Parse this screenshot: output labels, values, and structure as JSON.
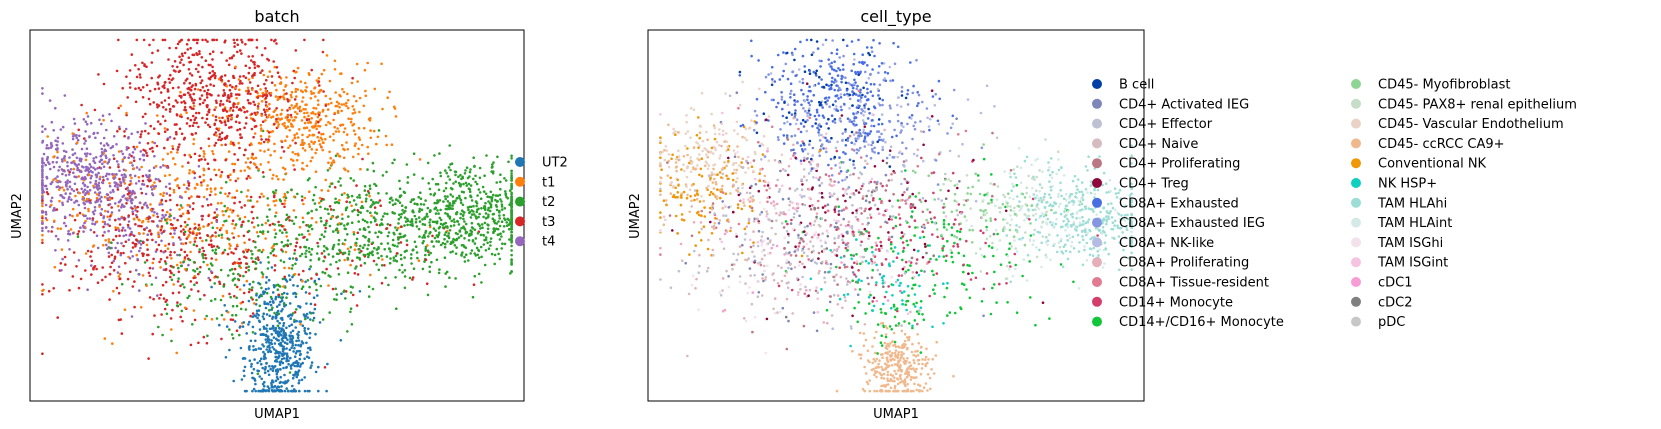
{
  "chart_data": [
    {
      "type": "scatter",
      "title": "batch",
      "xlabel": "UMAP1",
      "ylabel": "UMAP2",
      "grid": false,
      "legend_placement": "right",
      "series": [
        {
          "name": "UT2",
          "color": "#1f77b4",
          "regions": [
            {
              "cx": 2.55,
              "cy": -2.6,
              "sx": 0.35,
              "sy": 0.55,
              "n": 420
            },
            {
              "cx": 2.6,
              "cy": -1.6,
              "sx": 0.5,
              "sy": 0.4,
              "n": 120
            }
          ]
        },
        {
          "name": "t1",
          "color": "#ff7f0e",
          "regions": [
            {
              "cx": 3.0,
              "cy": 2.2,
              "sx": 0.8,
              "sy": 0.55,
              "n": 420
            },
            {
              "cx": 1.2,
              "cy": 0.3,
              "sx": 1.6,
              "sy": 0.9,
              "n": 380
            },
            {
              "cx": -1.4,
              "cy": 0.6,
              "sx": 0.5,
              "sy": 0.5,
              "n": 60
            }
          ]
        },
        {
          "name": "t2",
          "color": "#2ca02c",
          "regions": [
            {
              "cx": 6.4,
              "cy": 0.3,
              "sx": 0.8,
              "sy": 0.55,
              "n": 600
            },
            {
              "cx": 4.2,
              "cy": 0.0,
              "sx": 1.0,
              "sy": 0.55,
              "n": 380
            },
            {
              "cx": 2.0,
              "cy": -0.8,
              "sx": 1.2,
              "sy": 0.7,
              "n": 260
            }
          ]
        },
        {
          "name": "t3",
          "color": "#d62728",
          "regions": [
            {
              "cx": 1.2,
              "cy": 2.6,
              "sx": 0.95,
              "sy": 0.7,
              "n": 600
            },
            {
              "cx": 0.4,
              "cy": -0.4,
              "sx": 1.2,
              "sy": 0.8,
              "n": 420
            },
            {
              "cx": 4.2,
              "cy": -0.3,
              "sx": 1.0,
              "sy": 0.6,
              "n": 70
            }
          ]
        },
        {
          "name": "t4",
          "color": "#9467bd",
          "regions": [
            {
              "cx": -1.4,
              "cy": 1.0,
              "sx": 0.7,
              "sy": 0.6,
              "n": 500
            },
            {
              "cx": -0.2,
              "cy": 0.2,
              "sx": 0.7,
              "sy": 0.6,
              "n": 150
            }
          ]
        }
      ],
      "xlim": [
        -2.5,
        7.5
      ],
      "ylim": [
        -3.5,
        4.0
      ]
    },
    {
      "type": "scatter",
      "title": "cell_type",
      "xlabel": "UMAP1",
      "ylabel": "UMAP2",
      "grid": false,
      "legend_placement": "right",
      "legend_columns": 2,
      "series": [
        {
          "name": "B cell",
          "color": "#023fa5",
          "regions": [
            {
              "cx": 1.3,
              "cy": 2.6,
              "sx": 0.7,
              "sy": 0.6,
              "n": 70
            }
          ]
        },
        {
          "name": "CD4+ Activated IEG",
          "color": "#7d87b9",
          "regions": [
            {
              "cx": 1.0,
              "cy": 0.3,
              "sx": 1.2,
              "sy": 1.0,
              "n": 90
            }
          ]
        },
        {
          "name": "CD4+ Effector",
          "color": "#bec1d4",
          "regions": [
            {
              "cx": 0.5,
              "cy": -0.3,
              "sx": 1.1,
              "sy": 0.8,
              "n": 110
            }
          ]
        },
        {
          "name": "CD4+ Naive",
          "color": "#d6bcc0",
          "regions": [
            {
              "cx": 0.2,
              "cy": -0.6,
              "sx": 1.0,
              "sy": 0.7,
              "n": 110
            }
          ]
        },
        {
          "name": "CD4+ Proliferating",
          "color": "#bb7784",
          "regions": [
            {
              "cx": 1.2,
              "cy": 0.0,
              "sx": 1.3,
              "sy": 0.9,
              "n": 80
            }
          ]
        },
        {
          "name": "CD4+ Treg",
          "color": "#8e063b",
          "regions": [
            {
              "cx": 1.6,
              "cy": 0.3,
              "sx": 1.4,
              "sy": 1.0,
              "n": 90
            }
          ]
        },
        {
          "name": "CD8A+ Exhausted",
          "color": "#4a6fe3",
          "regions": [
            {
              "cx": 1.4,
              "cy": 2.6,
              "sx": 0.8,
              "sy": 0.6,
              "n": 280
            }
          ]
        },
        {
          "name": "CD8A+ Exhausted IEG",
          "color": "#8595e1",
          "regions": [
            {
              "cx": 1.6,
              "cy": 2.2,
              "sx": 0.9,
              "sy": 0.7,
              "n": 170
            }
          ]
        },
        {
          "name": "CD8A+ NK-like",
          "color": "#b5bbe3",
          "regions": [
            {
              "cx": 1.8,
              "cy": 1.8,
              "sx": 1.0,
              "sy": 0.8,
              "n": 120
            }
          ]
        },
        {
          "name": "CD8A+ Proliferating",
          "color": "#e6afb9",
          "regions": [
            {
              "cx": 0.6,
              "cy": 0.0,
              "sx": 1.2,
              "sy": 0.9,
              "n": 90
            }
          ]
        },
        {
          "name": "CD8A+ Tissue-resident",
          "color": "#e07b91",
          "regions": [
            {
              "cx": 1.0,
              "cy": 0.5,
              "sx": 1.2,
              "sy": 0.9,
              "n": 80
            }
          ]
        },
        {
          "name": "CD14+ Monocyte",
          "color": "#d33f6a",
          "regions": [
            {
              "cx": 2.8,
              "cy": -0.2,
              "sx": 1.2,
              "sy": 0.7,
              "n": 110
            }
          ]
        },
        {
          "name": "CD14+/CD16+ Monocyte",
          "color": "#11c638",
          "regions": [
            {
              "cx": 3.2,
              "cy": -0.6,
              "sx": 1.1,
              "sy": 0.7,
              "n": 160
            },
            {
              "cx": 2.6,
              "cy": -1.8,
              "sx": 0.4,
              "sy": 0.4,
              "n": 30
            }
          ]
        },
        {
          "name": "CD45- Myofibroblast",
          "color": "#8dd593",
          "regions": [
            {
              "cx": 4.2,
              "cy": 0.4,
              "sx": 0.8,
              "sy": 0.5,
              "n": 70
            }
          ]
        },
        {
          "name": "CD45- PAX8+ renal epithelium",
          "color": "#c6dec7",
          "regions": [
            {
              "cx": 4.8,
              "cy": 0.3,
              "sx": 0.7,
              "sy": 0.5,
              "n": 80
            }
          ]
        },
        {
          "name": "CD45- Vascular Endothelium",
          "color": "#ead3c6",
          "regions": [
            {
              "cx": -1.2,
              "cy": 1.5,
              "sx": 0.6,
              "sy": 0.5,
              "n": 140
            }
          ]
        },
        {
          "name": "CD45- ccRCC CA9+",
          "color": "#f0b98d",
          "regions": [
            {
              "cx": 2.5,
              "cy": -2.8,
              "sx": 0.35,
              "sy": 0.35,
              "n": 300
            },
            {
              "cx": -1.2,
              "cy": 0.9,
              "sx": 0.6,
              "sy": 0.5,
              "n": 90
            }
          ]
        },
        {
          "name": "Conventional NK",
          "color": "#ef9708",
          "regions": [
            {
              "cx": -1.3,
              "cy": 0.8,
              "sx": 0.6,
              "sy": 0.6,
              "n": 120
            }
          ]
        },
        {
          "name": "NK HSP+",
          "color": "#0fcfc0",
          "regions": [
            {
              "cx": 2.4,
              "cy": -1.2,
              "sx": 0.7,
              "sy": 0.5,
              "n": 60
            }
          ]
        },
        {
          "name": "TAM HLAhi",
          "color": "#9cded6",
          "regions": [
            {
              "cx": 6.4,
              "cy": 0.3,
              "sx": 0.7,
              "sy": 0.5,
              "n": 330
            }
          ]
        },
        {
          "name": "TAM HLAint",
          "color": "#d5eae7",
          "regions": [
            {
              "cx": 5.6,
              "cy": 0.1,
              "sx": 0.8,
              "sy": 0.5,
              "n": 150
            }
          ]
        },
        {
          "name": "TAM ISGhi",
          "color": "#f3e1eb",
          "regions": [
            {
              "cx": 0.0,
              "cy": -0.2,
              "sx": 1.0,
              "sy": 0.8,
              "n": 60
            }
          ]
        },
        {
          "name": "TAM ISGint",
          "color": "#f6c4e1",
          "regions": [
            {
              "cx": 0.4,
              "cy": 0.3,
              "sx": 1.1,
              "sy": 0.8,
              "n": 60
            }
          ]
        },
        {
          "name": "cDC1",
          "color": "#f79cd4",
          "regions": [
            {
              "cx": 1.0,
              "cy": -0.4,
              "sx": 0.9,
              "sy": 0.7,
              "n": 20
            }
          ]
        },
        {
          "name": "cDC2",
          "color": "#7f7f7f",
          "regions": [
            {
              "cx": 2.0,
              "cy": 0.0,
              "sx": 1.0,
              "sy": 0.7,
              "n": 30
            }
          ]
        },
        {
          "name": "pDC",
          "color": "#c7c7c7",
          "regions": [
            {
              "cx": 1.4,
              "cy": 0.6,
              "sx": 1.2,
              "sy": 0.8,
              "n": 40
            }
          ]
        }
      ],
      "xlim": [
        -2.5,
        7.5
      ],
      "ylim": [
        -3.5,
        4.0
      ]
    }
  ]
}
